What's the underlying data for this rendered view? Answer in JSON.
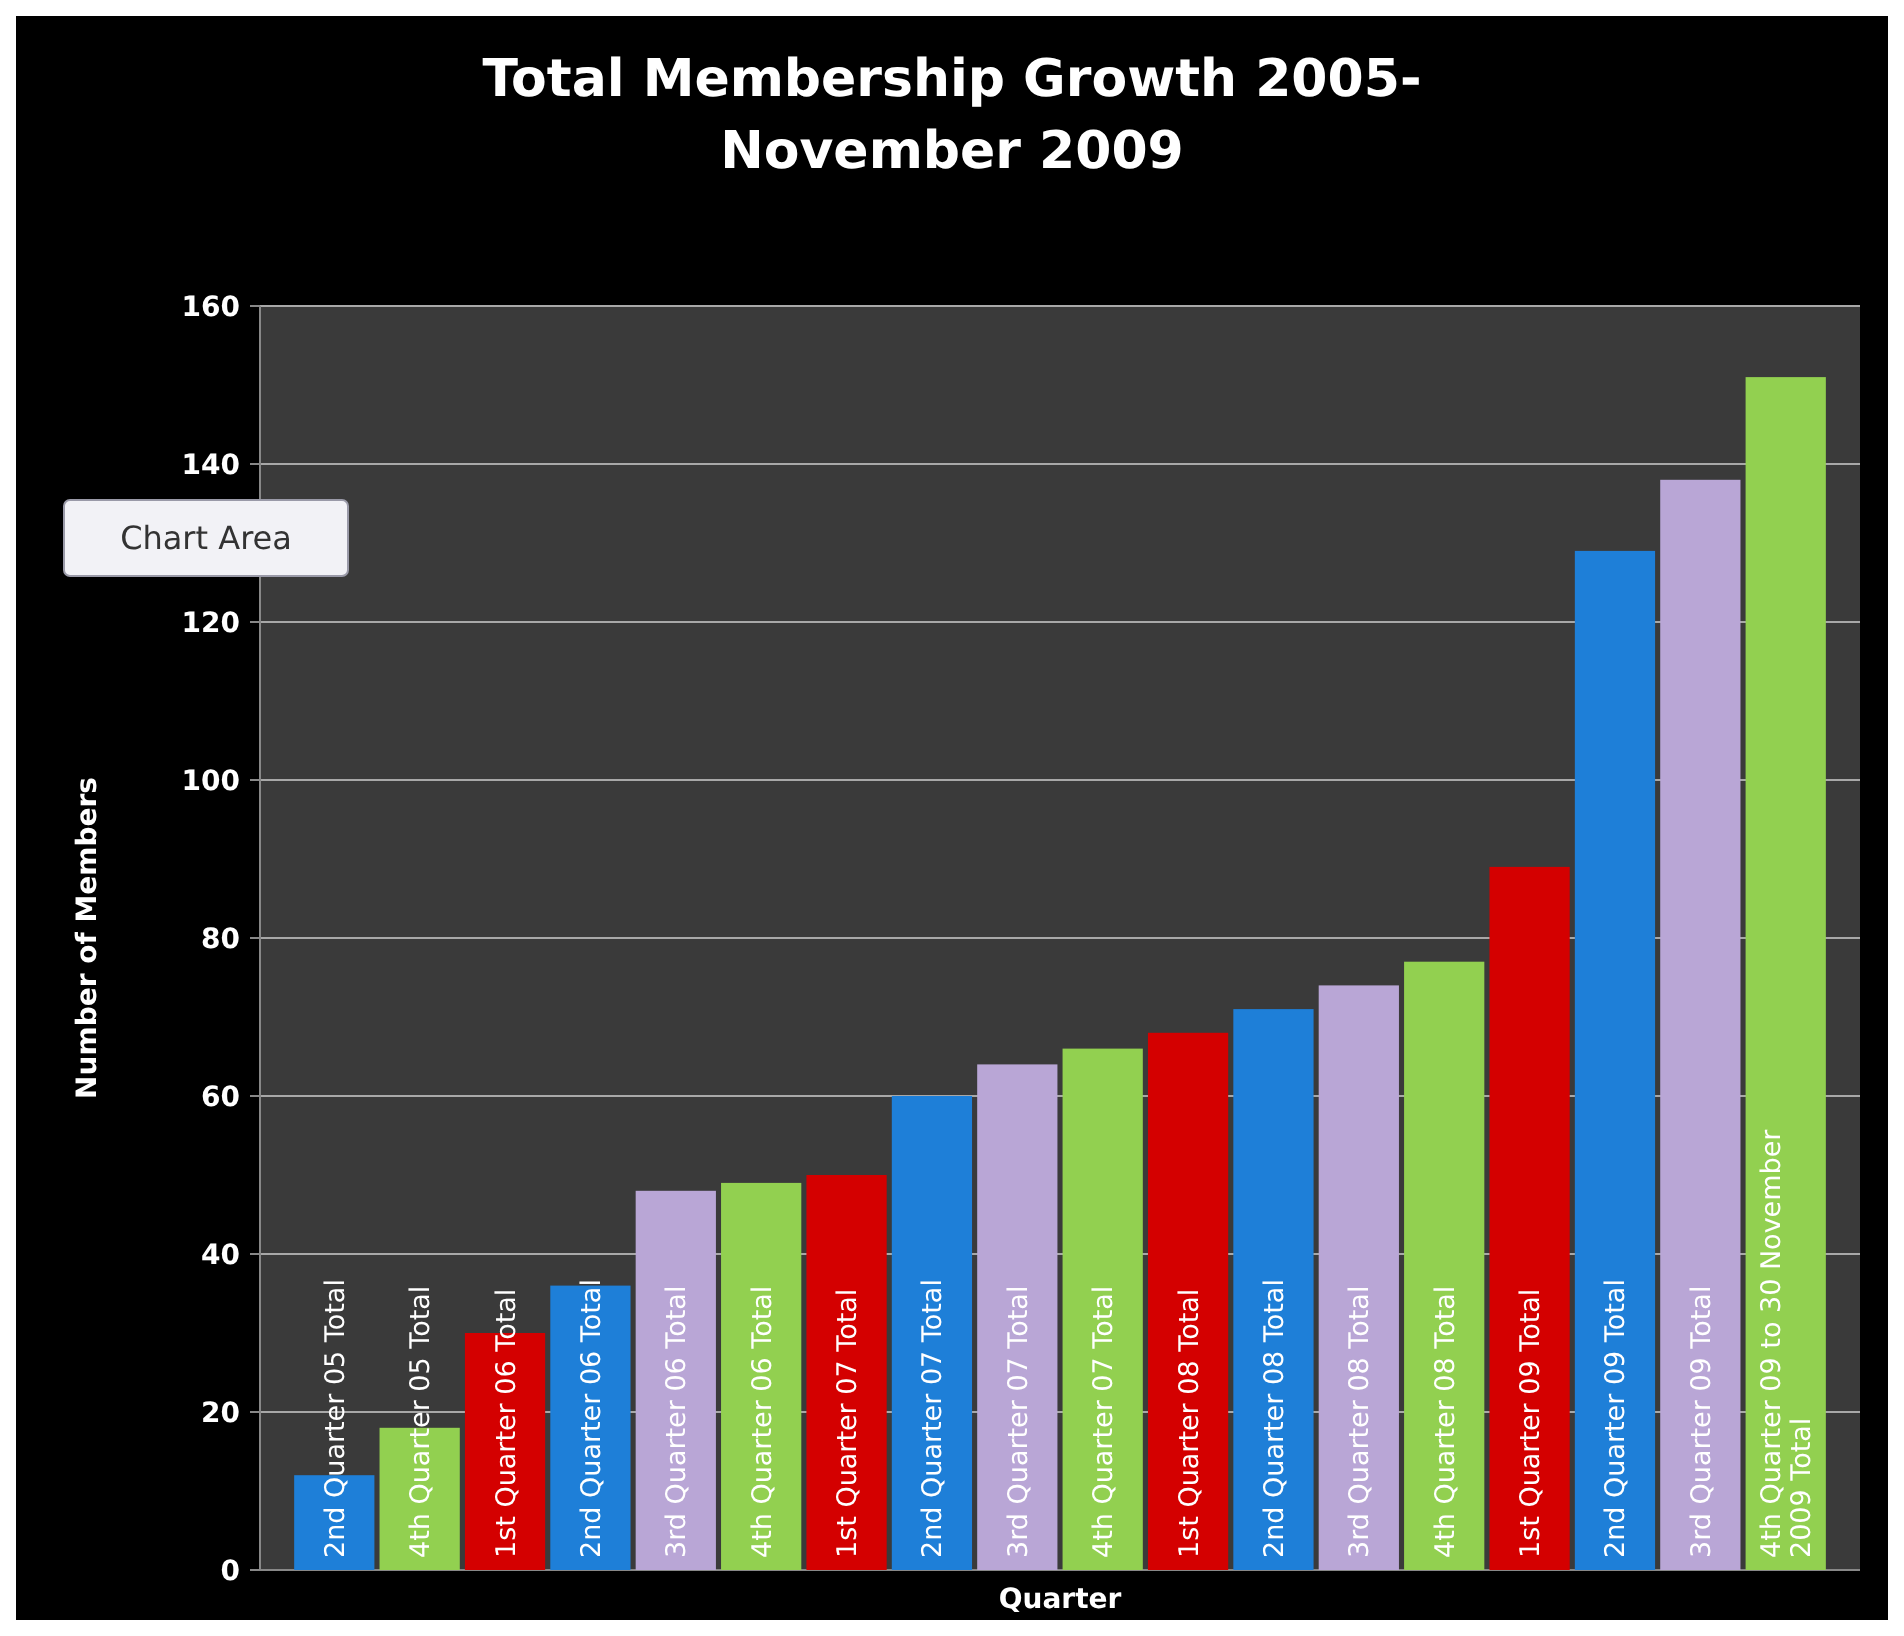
{
  "chart_data": {
    "type": "bar",
    "title": "Total Membership Growth 2005-\nNovember 2009",
    "xlabel": "Quarter",
    "ylabel": "Number of Members",
    "categories": [
      "2nd Quarter 05 Total",
      "4th Quarter 05 Total",
      "1st Quarter 06 Total",
      "2nd Quarter 06 Total",
      "3rd Quarter 06 Total",
      "4th Quarter 06 Total",
      "1st Quarter 07 Total",
      "2nd Quarter 07 Total",
      "3rd Quarter 07 Total",
      "4th Quarter 07 Total",
      "1st Quarter 08 Total",
      "2nd Quarter 08 Total",
      "3rd Quarter 08 Total",
      "4th Quarter 08 Total",
      "1st Quarter 09 Total",
      "2nd Quarter 09 Total",
      "3rd Quarter 09 Total",
      "4th Quarter 09 to 30 November 2009 Total"
    ],
    "values": [
      12,
      18,
      30,
      36,
      48,
      49,
      50,
      60,
      64,
      66,
      68,
      71,
      74,
      77,
      89,
      129,
      138,
      151
    ],
    "colors": [
      "#1e7fd8",
      "#92d050",
      "#d40000",
      "#1e7fd8",
      "#b9a6d6",
      "#92d050",
      "#d40000",
      "#1e7fd8",
      "#b9a6d6",
      "#92d050",
      "#d40000",
      "#1e7fd8",
      "#b9a6d6",
      "#92d050",
      "#d40000",
      "#1e7fd8",
      "#b9a6d6",
      "#92d050"
    ],
    "ylim": [
      0,
      160
    ],
    "yticks": [
      0,
      20,
      40,
      60,
      80,
      100,
      120,
      140,
      160
    ],
    "grid": "y",
    "annotations": [
      "Chart Area"
    ]
  }
}
